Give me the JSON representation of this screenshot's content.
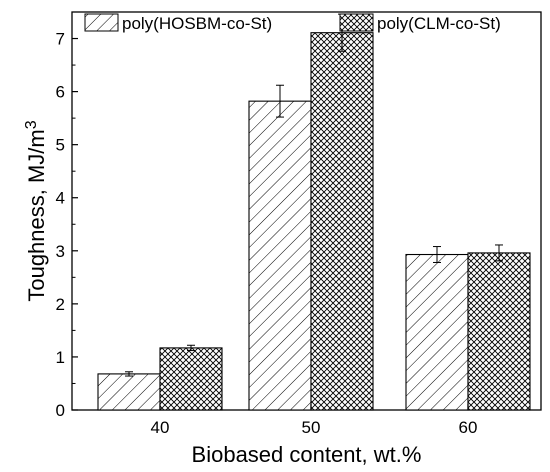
{
  "chart_data": {
    "type": "bar",
    "title": "",
    "xlabel": "Biobased content, wt.%",
    "ylabel_main": "Toughness, MJ/m",
    "ylabel_sup": "3",
    "categories": [
      "40",
      "50",
      "60"
    ],
    "series": [
      {
        "name": "poly(HOSBM-co-St)",
        "pattern": "hatch-diagonal",
        "values": [
          0.68,
          5.82,
          2.93
        ],
        "errors": [
          0.04,
          0.3,
          0.15
        ]
      },
      {
        "name": "poly(CLM-co-St)",
        "pattern": "crosshatch",
        "values": [
          1.17,
          7.11,
          2.96
        ],
        "errors": [
          0.05,
          0.35,
          0.15
        ]
      }
    ],
    "ylim": [
      0,
      7.5
    ],
    "yticks": [
      0,
      1,
      2,
      3,
      4,
      5,
      6,
      7
    ],
    "grid": false,
    "legend_position": "top"
  },
  "colors": {
    "stroke": "#000000",
    "fill": "#ffffff"
  }
}
